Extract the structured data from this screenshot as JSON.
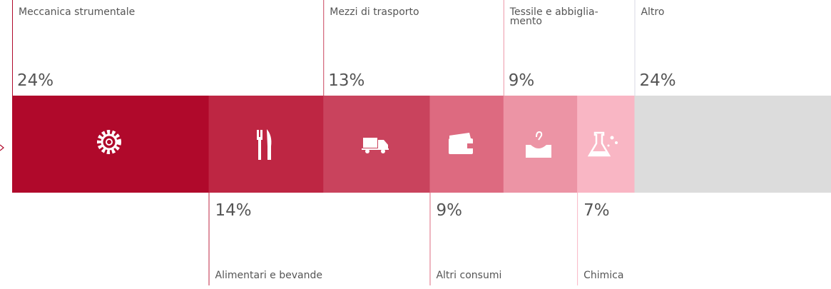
{
  "chart_data": {
    "type": "stacked-bar",
    "categories": [
      "Meccanica strumentale",
      "Alimentari e bevande",
      "Mezzi di trasporto",
      "Altri consumi",
      "Tessile e abbiglia-\nmento",
      "Chimica",
      "Altro"
    ],
    "values": [
      24,
      14,
      13,
      9,
      9,
      7,
      24
    ],
    "value_labels": [
      "24%",
      "14%",
      "13%",
      "9%",
      "9%",
      "7%",
      "24%"
    ],
    "colors": [
      "#b0092b",
      "#be2643",
      "#c9435d",
      "#dd6a80",
      "#ec94a5",
      "#f9b6c4",
      "#dcdcdc"
    ],
    "line_colors": [
      "#b0092b",
      "#be2643",
      "#c9435d",
      "#dd6a80",
      "#ec94a5",
      "#f9b6c4",
      "#d8d8e4"
    ]
  }
}
